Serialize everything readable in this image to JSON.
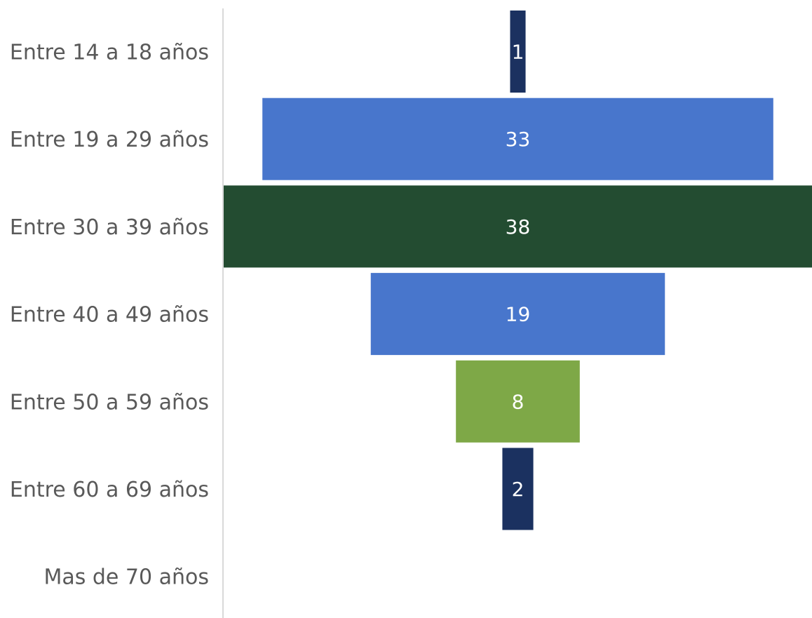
{
  "chart_data": {
    "type": "bar",
    "orientation": "horizontal",
    "style": "funnel",
    "title": "",
    "xlabel": "",
    "ylabel": "",
    "categories": [
      "Entre 14 a 18 años",
      "Entre 19 a 29 años",
      "Entre 30 a 39 años",
      "Entre 40 a 49 años",
      "Entre 50 a 59 años",
      "Entre 60 a 69 años",
      "Mas de 70 años"
    ],
    "values": [
      1,
      33,
      38,
      19,
      8,
      2,
      0
    ],
    "data_labels": [
      "1",
      "33",
      "38",
      "19",
      "8",
      "2",
      ""
    ],
    "colors": [
      "#1b3160",
      "#4876cc",
      "#234c31",
      "#4876cc",
      "#7ea847",
      "#1b3160",
      "#4876cc"
    ],
    "xlim": [
      0,
      38
    ],
    "grid": false,
    "legend": "none"
  }
}
